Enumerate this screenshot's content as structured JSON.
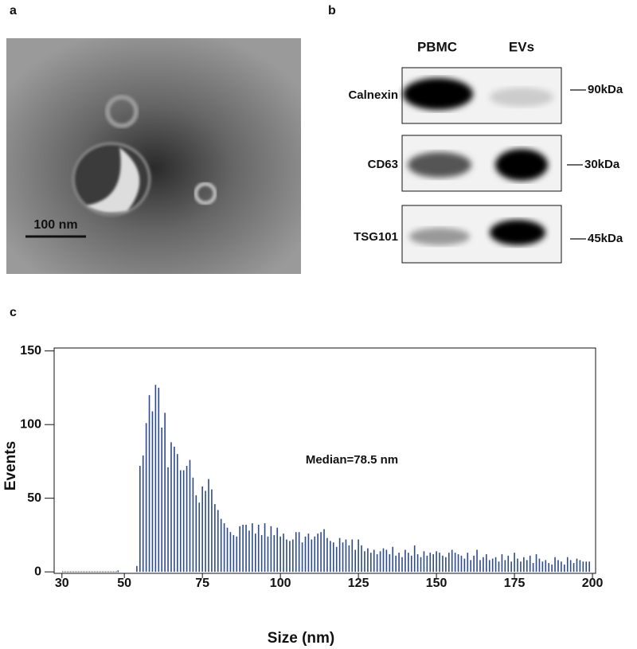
{
  "panels": {
    "a": {
      "label": "a",
      "scale_bar": "100 nm"
    },
    "b": {
      "label": "b",
      "columns": [
        "PBMC",
        "EVs"
      ],
      "rows": [
        {
          "protein": "Calnexin",
          "size": "90kDa"
        },
        {
          "protein": "CD63",
          "size": "30kDa"
        },
        {
          "protein": "TSG101",
          "size": "45kDa"
        }
      ]
    },
    "c": {
      "label": "c"
    }
  },
  "chart_data": {
    "type": "bar",
    "xlabel": "Size (nm)",
    "ylabel": "Events",
    "annotation": "Median=78.5 nm",
    "color": "#2d4a8c",
    "x": [
      48,
      49,
      50,
      51,
      52,
      53,
      54,
      55,
      56,
      57,
      58,
      59,
      60,
      61,
      62,
      63,
      64,
      65,
      66,
      67,
      68,
      69,
      70,
      71,
      72,
      73,
      74,
      75,
      76,
      77,
      78,
      79,
      80,
      81,
      82,
      83,
      84,
      85,
      86,
      87,
      88,
      89,
      90,
      91,
      92,
      93,
      94,
      95,
      96,
      97,
      98,
      99,
      100,
      101,
      102,
      103,
      104,
      105,
      106,
      107,
      108,
      109,
      110,
      111,
      112,
      113,
      114,
      115,
      116,
      117,
      118,
      119,
      120,
      121,
      122,
      123,
      124,
      125,
      126,
      127,
      128,
      129,
      130,
      131,
      132,
      133,
      134,
      135,
      136,
      137,
      138,
      139,
      140,
      141,
      142,
      143,
      144,
      145,
      146,
      147,
      148,
      149,
      150,
      151,
      152,
      153,
      154,
      155,
      156,
      157,
      158,
      159,
      160,
      161,
      162,
      163,
      164,
      165,
      166,
      167,
      168,
      169,
      170,
      171,
      172,
      173,
      174,
      175,
      176,
      177,
      178,
      179,
      180,
      181,
      182,
      183,
      184,
      185,
      186,
      187,
      188,
      189,
      190,
      191,
      192,
      193,
      194,
      195,
      196,
      197,
      198,
      199
    ],
    "values": [
      1,
      0,
      0,
      0,
      0,
      0,
      4,
      72,
      79,
      101,
      120,
      109,
      127,
      125,
      98,
      108,
      71,
      88,
      85,
      80,
      69,
      69,
      72,
      76,
      64,
      52,
      47,
      58,
      55,
      63,
      56,
      46,
      42,
      36,
      33,
      30,
      27,
      25,
      24,
      31,
      32,
      32,
      28,
      33,
      26,
      32,
      25,
      33,
      24,
      31,
      25,
      30,
      24,
      26,
      22,
      21,
      22,
      27,
      27,
      20,
      24,
      26,
      22,
      24,
      26,
      27,
      29,
      23,
      21,
      20,
      17,
      23,
      20,
      22,
      18,
      22,
      15,
      22,
      18,
      14,
      16,
      13,
      15,
      12,
      14,
      16,
      15,
      12,
      17,
      11,
      13,
      10,
      15,
      13,
      11,
      18,
      12,
      10,
      14,
      11,
      13,
      12,
      14,
      13,
      11,
      10,
      13,
      15,
      13,
      12,
      11,
      9,
      13,
      8,
      11,
      15,
      8,
      10,
      12,
      8,
      9,
      10,
      7,
      12,
      8,
      11,
      7,
      13,
      9,
      7,
      10,
      8,
      11,
      6,
      12,
      9,
      7,
      8,
      6,
      5,
      10,
      8,
      7,
      5,
      10,
      8,
      6,
      9,
      8,
      7,
      7,
      7
    ],
    "xlim": [
      27.5,
      201
    ],
    "ylim": [
      -1,
      152
    ],
    "xticks": [
      30,
      50,
      75,
      100,
      125,
      150,
      175,
      200
    ],
    "yticks": [
      0,
      50,
      100,
      150
    ]
  }
}
